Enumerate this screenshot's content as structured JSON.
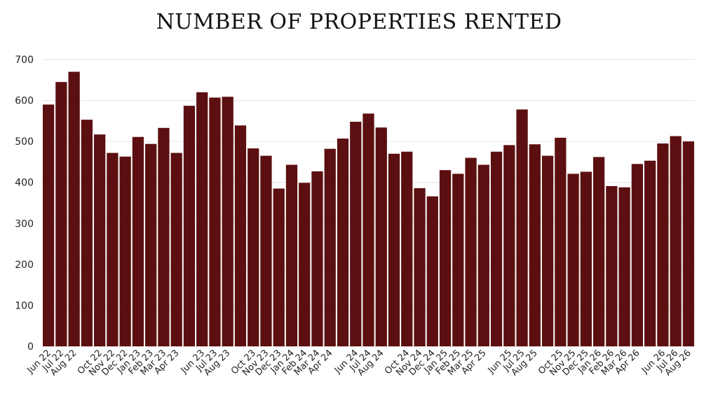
{
  "chart_data": {
    "type": "bar",
    "title": "NUMBER OF PROPERTIES RENTED",
    "xlabel": "",
    "ylabel": "",
    "ylim": [
      0,
      700
    ],
    "yticks": [
      0,
      100,
      200,
      300,
      400,
      500,
      600,
      700
    ],
    "grid": true,
    "bar_color": "#5c0f10",
    "categories": [
      "Jun 22",
      "Jul 22",
      "Aug 22",
      "",
      "Oct 22",
      "Nov 22",
      "Dec 22",
      "Jan 23",
      "Feb 23",
      "Mar 23",
      "Apr 23",
      "",
      "Jun 23",
      "Jul 23",
      "Aug 23",
      "",
      "Oct 23",
      "Nov 23",
      "Dec 23",
      "Jan 24",
      "Feb 24",
      "Mar 24",
      "Apr 24",
      "",
      "Jun 24",
      "Jul 24",
      "Aug 24",
      "",
      "Oct 24",
      "Nov 24",
      "Dec 24",
      "Jan 25",
      "Feb 25",
      "Mar 25",
      "Apr 25",
      "",
      "Jun 25",
      "Jul 25",
      "Aug 25",
      "",
      "Oct 25",
      "Nov 25",
      "Dec 25",
      "Jan 26",
      "Feb 26",
      "Mar 26",
      "Apr 26",
      "",
      "Jun 26",
      "Jul 26",
      "Aug 26"
    ],
    "values": [
      590,
      645,
      670,
      553,
      517,
      472,
      463,
      511,
      494,
      533,
      472,
      587,
      620,
      607,
      609,
      539,
      483,
      465,
      385,
      443,
      399,
      427,
      482,
      507,
      548,
      568,
      534,
      470,
      475,
      386,
      366,
      430,
      421,
      460,
      443,
      475,
      491,
      578,
      493,
      465,
      509,
      421,
      426,
      462,
      391,
      388,
      445,
      453,
      495,
      513,
      500
    ]
  }
}
